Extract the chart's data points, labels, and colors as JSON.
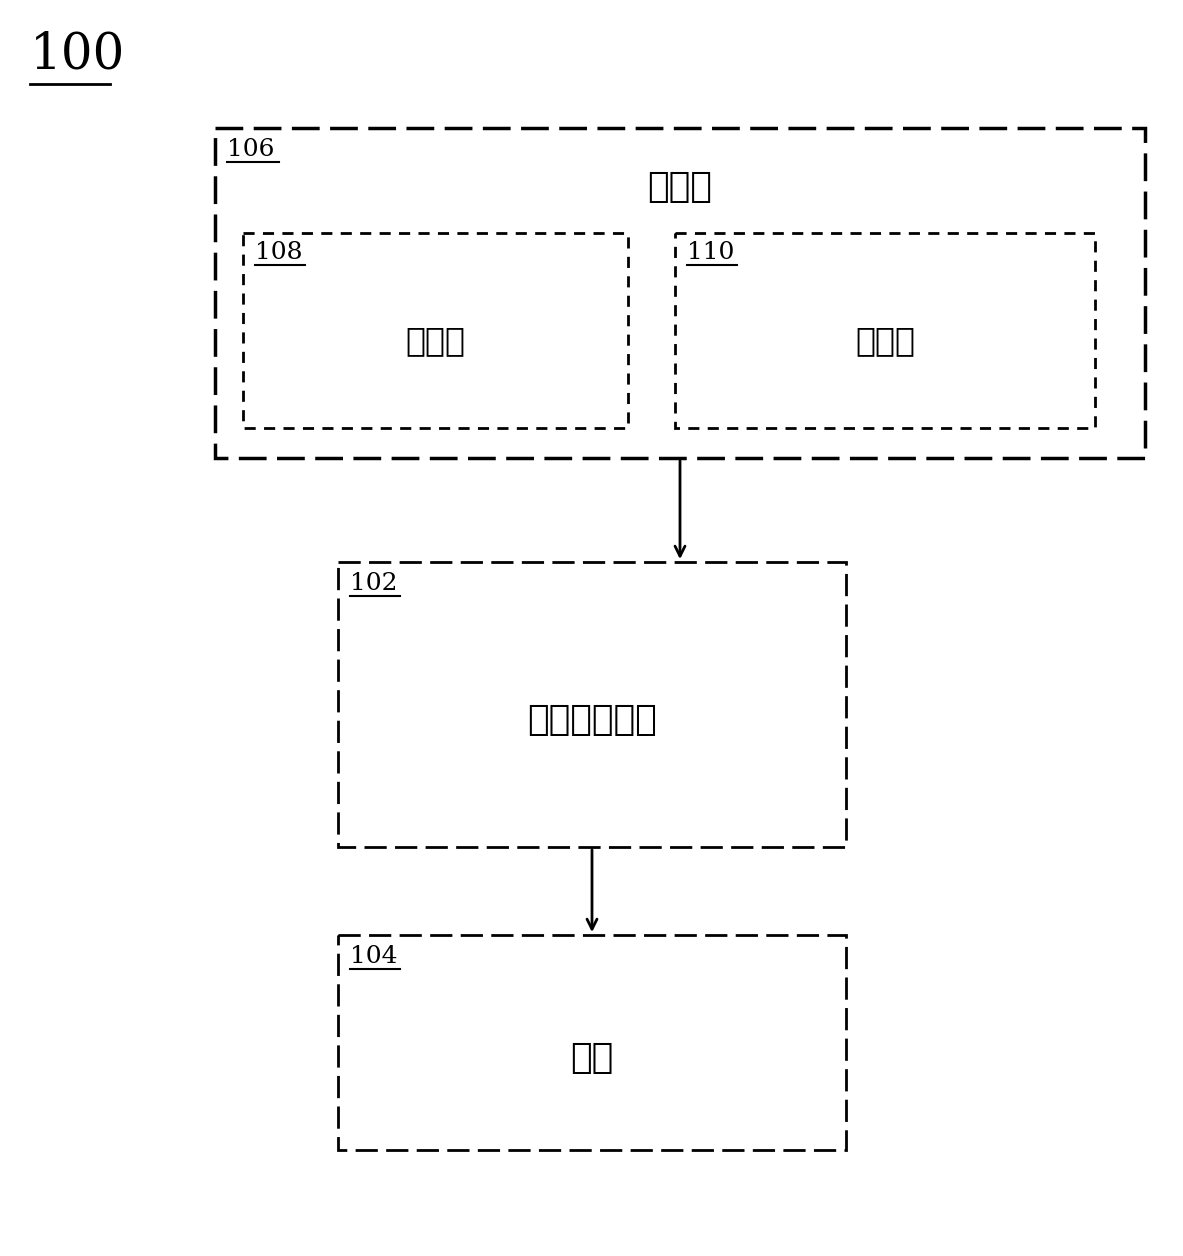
{
  "fig_width": 11.83,
  "fig_height": 12.56,
  "bg_color": "#ffffff",
  "label_100": "100",
  "label_106": "106",
  "label_108": "108",
  "label_110": "110",
  "label_102": "102",
  "label_104": "104",
  "text_controller": "控制器",
  "text_processor": "处理器",
  "text_memory": "存储器",
  "text_overlay": "叠加计量工具",
  "text_sample": "样本",
  "font_size_label": 18,
  "font_size_text": 22,
  "font_size_100": 36
}
